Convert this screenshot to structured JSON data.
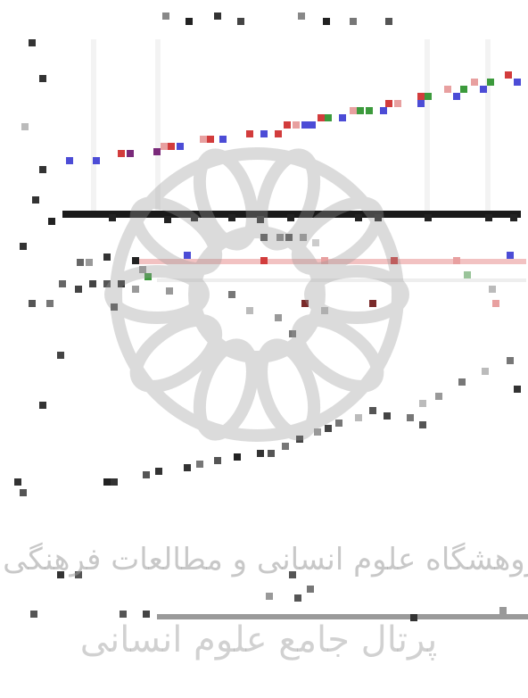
{
  "watermark": {
    "logo": "star-rosette-seal",
    "line1": "پژوهشگاه علوم انسانی و مطالعات فرهنگی",
    "line2": "پرتال جامع علوم انسانی",
    "color": "#9a9a9a"
  },
  "scan": {
    "upper_plot": "low-resolution series of colored markers rising left to right",
    "colors": {
      "blue": "#4c4cd6",
      "red": "#d23c3c",
      "pink": "#e8a0a0",
      "green": "#3c9a3c",
      "purple": "#7a2a7a",
      "dark": "#222222",
      "band": "#f2c2c2"
    },
    "blocks": [
      [
        182,
        14,
        "#888"
      ],
      [
        208,
        20,
        "#222"
      ],
      [
        240,
        14,
        "#333"
      ],
      [
        266,
        20,
        "#444"
      ],
      [
        334,
        14,
        "#888"
      ],
      [
        362,
        20,
        "#222"
      ],
      [
        392,
        20,
        "#777"
      ],
      [
        432,
        20,
        "#555"
      ],
      [
        32,
        44,
        "#333"
      ],
      [
        44,
        84,
        "#333"
      ],
      [
        24,
        138,
        "#bbb"
      ],
      [
        44,
        186,
        "#333"
      ],
      [
        36,
        220,
        "#333"
      ],
      [
        74,
        176,
        "#4c4cd6"
      ],
      [
        104,
        176,
        "#4c4cd6"
      ],
      [
        132,
        168,
        "#d23c3c"
      ],
      [
        142,
        168,
        "#7a2a7a"
      ],
      [
        172,
        166,
        "#7a2a7a"
      ],
      [
        180,
        160,
        "#e8a0a0"
      ],
      [
        188,
        160,
        "#d23c3c"
      ],
      [
        198,
        160,
        "#4c4cd6"
      ],
      [
        224,
        152,
        "#e8a0a0"
      ],
      [
        232,
        152,
        "#d23c3c"
      ],
      [
        246,
        152,
        "#4c4cd6"
      ],
      [
        276,
        146,
        "#d23c3c"
      ],
      [
        292,
        146,
        "#4c4cd6"
      ],
      [
        308,
        146,
        "#d23c3c"
      ],
      [
        318,
        136,
        "#d23c3c"
      ],
      [
        328,
        136,
        "#e8a0a0"
      ],
      [
        338,
        136,
        "#4c4cd6"
      ],
      [
        346,
        136,
        "#4c4cd6"
      ],
      [
        356,
        128,
        "#d23c3c"
      ],
      [
        364,
        128,
        "#3c9a3c"
      ],
      [
        380,
        128,
        "#4c4cd6"
      ],
      [
        392,
        120,
        "#e8a0a0"
      ],
      [
        400,
        120,
        "#3c9a3c"
      ],
      [
        410,
        120,
        "#3c9a3c"
      ],
      [
        426,
        120,
        "#4c4cd6"
      ],
      [
        432,
        112,
        "#d23c3c"
      ],
      [
        442,
        112,
        "#e8a0a0"
      ],
      [
        468,
        104,
        "#d23c3c"
      ],
      [
        476,
        104,
        "#3c9a3c"
      ],
      [
        468,
        112,
        "#4c4cd6"
      ],
      [
        498,
        96,
        "#e8a0a0"
      ],
      [
        508,
        104,
        "#4c4cd6"
      ],
      [
        516,
        96,
        "#3c9a3c"
      ],
      [
        528,
        88,
        "#e8a0a0"
      ],
      [
        538,
        96,
        "#4c4cd6"
      ],
      [
        546,
        88,
        "#3c9a3c"
      ],
      [
        566,
        80,
        "#d23c3c"
      ],
      [
        576,
        88,
        "#4c4cd6"
      ],
      [
        54,
        244,
        "#222"
      ],
      [
        122,
        240,
        "#222"
      ],
      [
        184,
        242,
        "#222"
      ],
      [
        214,
        240,
        "#222"
      ],
      [
        256,
        240,
        "#222"
      ],
      [
        288,
        242,
        "#333"
      ],
      [
        322,
        240,
        "#222"
      ],
      [
        398,
        240,
        "#222"
      ],
      [
        420,
        240,
        "#222"
      ],
      [
        476,
        240,
        "#222"
      ],
      [
        544,
        240,
        "#222"
      ],
      [
        572,
        240,
        "#222"
      ],
      [
        292,
        262,
        "#555"
      ],
      [
        310,
        262,
        "#888"
      ],
      [
        320,
        262,
        "#555"
      ],
      [
        336,
        262,
        "#999"
      ],
      [
        350,
        268,
        "#ccc"
      ],
      [
        22,
        272,
        "#333"
      ],
      [
        86,
        290,
        "#666"
      ],
      [
        96,
        290,
        "#999"
      ],
      [
        116,
        284,
        "#333"
      ],
      [
        148,
        288,
        "#222"
      ],
      [
        156,
        298,
        "#999"
      ],
      [
        206,
        282,
        "#4c4cd6"
      ],
      [
        292,
        288,
        "#d23c3c"
      ],
      [
        360,
        288,
        "#e8a0a0"
      ],
      [
        438,
        288,
        "#d23c3c"
      ],
      [
        508,
        288,
        "#e8a0a0"
      ],
      [
        568,
        282,
        "#4c4cd6"
      ],
      [
        66,
        314,
        "#666"
      ],
      [
        84,
        320,
        "#444"
      ],
      [
        100,
        314,
        "#444"
      ],
      [
        116,
        314,
        "#555"
      ],
      [
        132,
        314,
        "#333"
      ],
      [
        148,
        320,
        "#999"
      ],
      [
        162,
        306,
        "#3c9a3c"
      ],
      [
        186,
        322,
        "#999"
      ],
      [
        256,
        326,
        "#777"
      ],
      [
        338,
        336,
        "#7a2a2a"
      ],
      [
        414,
        336,
        "#7a2a2a"
      ],
      [
        520,
        304,
        "#9ac49a"
      ],
      [
        548,
        320,
        "#bbb"
      ],
      [
        552,
        336,
        "#e8a0a0"
      ],
      [
        32,
        336,
        "#555"
      ],
      [
        52,
        336,
        "#777"
      ],
      [
        124,
        340,
        "#555"
      ],
      [
        276,
        344,
        "#bbb"
      ],
      [
        308,
        352,
        "#999"
      ],
      [
        324,
        370,
        "#777"
      ],
      [
        360,
        344,
        "#bbb"
      ],
      [
        64,
        394,
        "#444"
      ],
      [
        568,
        400,
        "#777"
      ],
      [
        540,
        412,
        "#bbb"
      ],
      [
        514,
        424,
        "#777"
      ],
      [
        576,
        432,
        "#333"
      ],
      [
        488,
        440,
        "#999"
      ],
      [
        470,
        448,
        "#bbb"
      ],
      [
        44,
        450,
        "#333"
      ],
      [
        414,
        456,
        "#555"
      ],
      [
        430,
        462,
        "#444"
      ],
      [
        398,
        464,
        "#bbb"
      ],
      [
        456,
        464,
        "#777"
      ],
      [
        470,
        472,
        "#555"
      ],
      [
        376,
        470,
        "#777"
      ],
      [
        352,
        480,
        "#999"
      ],
      [
        364,
        476,
        "#444"
      ],
      [
        332,
        488,
        "#444"
      ],
      [
        316,
        496,
        "#777"
      ],
      [
        300,
        504,
        "#555"
      ],
      [
        288,
        504,
        "#333"
      ],
      [
        262,
        508,
        "#222"
      ],
      [
        240,
        512,
        "#555"
      ],
      [
        220,
        516,
        "#777"
      ],
      [
        206,
        520,
        "#333"
      ],
      [
        174,
        524,
        "#333"
      ],
      [
        160,
        528,
        "#555"
      ],
      [
        116,
        536,
        "#222"
      ],
      [
        124,
        536,
        "#333"
      ],
      [
        16,
        536,
        "#333"
      ],
      [
        22,
        548,
        "#555"
      ],
      [
        64,
        640,
        "#333"
      ],
      [
        84,
        640,
        "#555"
      ],
      [
        324,
        640,
        "#555"
      ],
      [
        344,
        656,
        "#777"
      ],
      [
        298,
        664,
        "#999"
      ],
      [
        330,
        666,
        "#555"
      ],
      [
        34,
        684,
        "#555"
      ],
      [
        134,
        684,
        "#555"
      ],
      [
        160,
        684,
        "#444"
      ],
      [
        460,
        688,
        "#333"
      ],
      [
        560,
        680,
        "#999"
      ]
    ],
    "bars": [
      [
        70,
        236,
        514,
        8,
        "#1a1a1a"
      ],
      [
        154,
        290,
        436,
        6,
        "#f2c2c2"
      ],
      [
        176,
        312,
        414,
        4,
        "#eeeeee"
      ],
      [
        176,
        688,
        416,
        6,
        "#9a9a9a"
      ]
    ],
    "vbands": [
      [
        102,
        44,
        6,
        200
      ],
      [
        174,
        44,
        6,
        200
      ],
      [
        476,
        44,
        6,
        200
      ],
      [
        544,
        44,
        6,
        200
      ]
    ]
  }
}
